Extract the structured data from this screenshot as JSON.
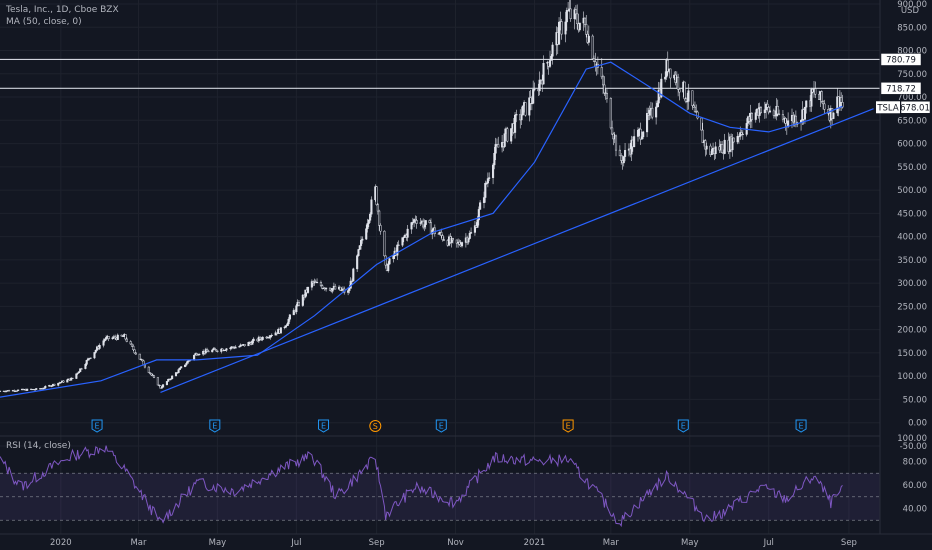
{
  "header": {
    "title": "Tesla, Inc., 1D, Cboe BZX",
    "ma_label": "MA (50, close, 0)",
    "rsi_label": "RSI (14, close)",
    "currency": "USD"
  },
  "colors": {
    "background": "#131722",
    "candle": "#e0e3eb",
    "ma_line": "#2962ff",
    "trendline": "#2962ff",
    "rsi_line": "#7e57c2",
    "rsi_band": "#7e57c2",
    "hline": "#d1d4dc"
  },
  "chart_data": [
    {
      "type": "candlestick",
      "title": "Tesla, Inc., 1D, Cboe BZX",
      "y_unit": "USD",
      "ylim": [
        -20,
        900
      ],
      "y_ticks": [
        "900.00",
        "850.00",
        "800.00",
        "750.00",
        "700.00",
        "650.00",
        "600.00",
        "550.00",
        "500.00",
        "450.00",
        "400.00",
        "350.00",
        "300.00",
        "250.00",
        "200.00",
        "150.00",
        "100.00",
        "50.00",
        "0.00",
        "-50.00"
      ],
      "x_ticks": [
        "2020",
        "Mar",
        "May",
        "Jul",
        "Sep",
        "Nov",
        "2021",
        "Mar",
        "May",
        "Jul",
        "Sep"
      ],
      "x_range": [
        "2019-11-15",
        "2021-09-25"
      ],
      "series": [
        {
          "name": "TSLA",
          "last": "678.01"
        },
        {
          "name": "MA (50, close, 0)"
        }
      ],
      "price_path": [
        [
          "2019-11-15",
          68
        ],
        [
          "2019-12-15",
          72
        ],
        [
          "2020-01-10",
          95
        ],
        [
          "2020-02-04",
          180
        ],
        [
          "2020-02-19",
          185
        ],
        [
          "2020-03-18",
          75
        ],
        [
          "2020-04-15",
          150
        ],
        [
          "2020-05-20",
          165
        ],
        [
          "2020-06-20",
          200
        ],
        [
          "2020-07-13",
          300
        ],
        [
          "2020-08-10",
          280
        ],
        [
          "2020-08-31",
          500
        ],
        [
          "2020-09-08",
          330
        ],
        [
          "2020-10-01",
          440
        ],
        [
          "2020-11-01",
          380
        ],
        [
          "2020-11-15",
          410
        ],
        [
          "2020-12-01",
          580
        ],
        [
          "2020-12-31",
          700
        ],
        [
          "2021-01-26",
          880
        ],
        [
          "2021-02-10",
          850
        ],
        [
          "2021-02-25",
          700
        ],
        [
          "2021-03-08",
          560
        ],
        [
          "2021-04-01",
          660
        ],
        [
          "2021-04-14",
          770
        ],
        [
          "2021-05-01",
          690
        ],
        [
          "2021-05-15",
          580
        ],
        [
          "2021-06-01",
          600
        ],
        [
          "2021-06-25",
          680
        ],
        [
          "2021-07-15",
          650
        ],
        [
          "2021-07-26",
          660
        ],
        [
          "2021-08-05",
          710
        ],
        [
          "2021-08-18",
          665
        ],
        [
          "2021-08-25",
          700
        ],
        [
          "2021-08-27",
          678
        ]
      ],
      "ma_path": [
        [
          "2019-11-15",
          55
        ],
        [
          "2020-02-01",
          90
        ],
        [
          "2020-03-15",
          135
        ],
        [
          "2020-04-15",
          135
        ],
        [
          "2020-06-01",
          145
        ],
        [
          "2020-07-15",
          230
        ],
        [
          "2020-09-01",
          340
        ],
        [
          "2020-10-15",
          410
        ],
        [
          "2020-11-30",
          450
        ],
        [
          "2021-01-01",
          560
        ],
        [
          "2021-02-10",
          760
        ],
        [
          "2021-03-01",
          775
        ],
        [
          "2021-04-01",
          720
        ],
        [
          "2021-05-01",
          665
        ],
        [
          "2021-06-01",
          635
        ],
        [
          "2021-07-01",
          625
        ],
        [
          "2021-08-01",
          650
        ],
        [
          "2021-08-27",
          680
        ]
      ],
      "trendline": [
        [
          "2020-03-18",
          65
        ],
        [
          "2021-09-20",
          675
        ]
      ],
      "horizontal_levels": [
        "780.79",
        "718.72"
      ],
      "event_markers": [
        {
          "date": "2020-01-29",
          "label": "E"
        },
        {
          "date": "2020-04-29",
          "label": "E"
        },
        {
          "date": "2020-07-22",
          "label": "E"
        },
        {
          "date": "2020-08-31",
          "label": "S"
        },
        {
          "date": "2020-10-21",
          "label": "E"
        },
        {
          "date": "2021-01-27",
          "label": "E"
        },
        {
          "date": "2021-04-26",
          "label": "E"
        },
        {
          "date": "2021-07-26",
          "label": "E"
        }
      ]
    },
    {
      "type": "line",
      "title": "RSI (14, close)",
      "ylim": [
        20,
        100
      ],
      "y_ticks": [
        "100.00",
        "80.00",
        "60.00",
        "40.00"
      ],
      "band": [
        30,
        70
      ],
      "midline": 50,
      "rsi_path": [
        [
          "2019-11-15",
          82
        ],
        [
          "2019-12-01",
          58
        ],
        [
          "2019-12-20",
          72
        ],
        [
          "2020-01-10",
          85
        ],
        [
          "2020-02-04",
          92
        ],
        [
          "2020-02-20",
          72
        ],
        [
          "2020-03-18",
          28
        ],
        [
          "2020-04-15",
          62
        ],
        [
          "2020-05-15",
          55
        ],
        [
          "2020-06-15",
          72
        ],
        [
          "2020-07-13",
          85
        ],
        [
          "2020-08-01",
          50
        ],
        [
          "2020-08-31",
          83
        ],
        [
          "2020-09-08",
          35
        ],
        [
          "2020-10-01",
          58
        ],
        [
          "2020-11-01",
          45
        ],
        [
          "2020-12-01",
          83
        ],
        [
          "2021-01-08",
          80
        ],
        [
          "2021-01-26",
          82
        ],
        [
          "2021-02-15",
          58
        ],
        [
          "2021-03-08",
          28
        ],
        [
          "2021-04-01",
          55
        ],
        [
          "2021-04-14",
          68
        ],
        [
          "2021-05-15",
          30
        ],
        [
          "2021-06-01",
          40
        ],
        [
          "2021-06-25",
          58
        ],
        [
          "2021-07-15",
          48
        ],
        [
          "2021-08-05",
          68
        ],
        [
          "2021-08-18",
          45
        ],
        [
          "2021-08-27",
          55
        ]
      ]
    }
  ]
}
